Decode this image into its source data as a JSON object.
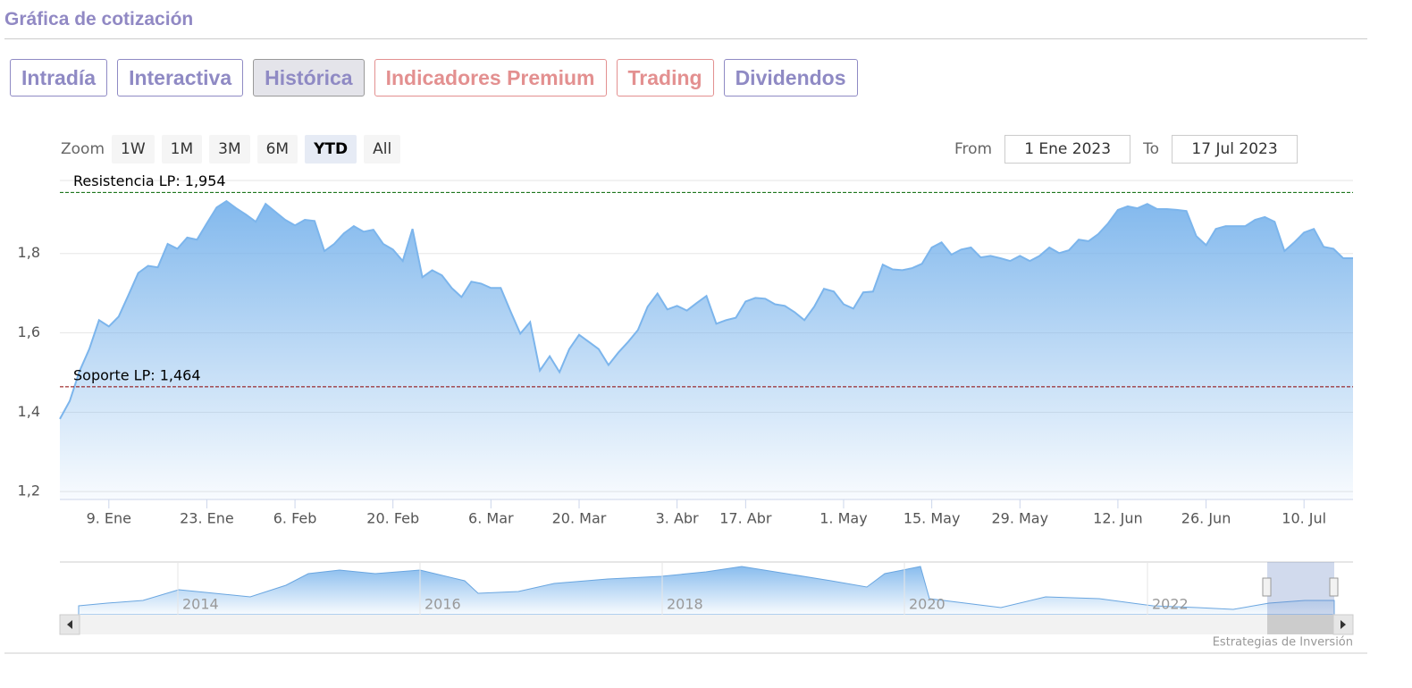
{
  "header": {
    "title": "Gráfica de cotización"
  },
  "tabs": [
    "Intradía",
    "Interactiva",
    "Histórica",
    "Indicadores Premium",
    "Trading",
    "Dividendos"
  ],
  "zoom": {
    "label": "Zoom",
    "buttons": [
      "1W",
      "1M",
      "3M",
      "6M",
      "YTD",
      "All"
    ]
  },
  "range": {
    "from_label": "From",
    "from": "1 Ene 2023",
    "to_label": "To",
    "to": "17 Jul 2023"
  },
  "navigator": {
    "labels": [
      "2014",
      "2016",
      "2018",
      "2020",
      "2022"
    ]
  },
  "credits": "Estrategias de Inversión",
  "chart_data": {
    "type": "area",
    "color": "#7cb5ec",
    "grid": true,
    "ylim": [
      1.18,
      1.984
    ],
    "yticks": [
      {
        "value": 1.2,
        "label": "1,2"
      },
      {
        "value": 1.4,
        "label": "1,4"
      },
      {
        "value": 1.6,
        "label": "1,6"
      },
      {
        "value": 1.8,
        "label": "1,8"
      }
    ],
    "lines": [
      {
        "label": "Resistencia LP: 1,954",
        "value": 1.954,
        "color": "#006400"
      },
      {
        "label": "Soporte LP: 1,464",
        "value": 1.464,
        "color": "#8b0000"
      }
    ],
    "categories": [
      null,
      null,
      null,
      null,
      null,
      "9. Ene",
      null,
      null,
      null,
      null,
      null,
      null,
      null,
      null,
      null,
      "23. Ene",
      null,
      null,
      null,
      null,
      null,
      null,
      null,
      null,
      "6. Feb",
      null,
      null,
      null,
      null,
      null,
      null,
      null,
      null,
      null,
      "20. Feb",
      null,
      null,
      null,
      null,
      null,
      null,
      null,
      null,
      null,
      "6. Mar",
      null,
      null,
      null,
      null,
      null,
      null,
      null,
      null,
      "20. Mar",
      null,
      null,
      null,
      null,
      null,
      null,
      null,
      null,
      null,
      "3. Abr",
      null,
      null,
      null,
      null,
      null,
      null,
      "17. Abr",
      null,
      null,
      null,
      null,
      null,
      null,
      null,
      null,
      null,
      "1. May",
      null,
      null,
      null,
      null,
      null,
      null,
      null,
      null,
      "15. May",
      null,
      null,
      null,
      null,
      null,
      null,
      null,
      null,
      "29. May",
      null,
      null,
      null,
      null,
      null,
      null,
      null,
      null,
      null,
      "12. Jun",
      null,
      null,
      null,
      null,
      null,
      null,
      null,
      null,
      "26. Jun",
      null,
      null,
      null,
      null,
      null,
      null,
      null,
      null,
      null,
      "10. Jul",
      null,
      null,
      null,
      null,
      null
    ],
    "values": [
      1.383,
      1.428,
      1.503,
      1.559,
      1.632,
      1.616,
      1.641,
      1.695,
      1.751,
      1.769,
      1.765,
      1.824,
      1.812,
      1.84,
      1.835,
      1.876,
      1.916,
      1.932,
      1.914,
      1.898,
      1.88,
      1.925,
      1.905,
      1.885,
      1.871,
      1.885,
      1.882,
      1.806,
      1.824,
      1.851,
      1.869,
      1.855,
      1.86,
      1.824,
      1.81,
      1.781,
      1.862,
      1.74,
      1.758,
      1.745,
      1.713,
      1.69,
      1.729,
      1.724,
      1.713,
      1.713,
      1.654,
      1.598,
      1.627,
      1.505,
      1.541,
      1.501,
      1.559,
      1.595,
      1.577,
      1.559,
      1.519,
      1.55,
      1.577,
      1.607,
      1.666,
      1.699,
      1.659,
      1.668,
      1.656,
      1.675,
      1.693,
      1.623,
      1.632,
      1.638,
      1.679,
      1.688,
      1.686,
      1.672,
      1.668,
      1.652,
      1.632,
      1.666,
      1.711,
      1.704,
      1.672,
      1.661,
      1.702,
      1.704,
      1.772,
      1.76,
      1.758,
      1.763,
      1.774,
      1.815,
      1.828,
      1.797,
      1.81,
      1.815,
      1.79,
      1.794,
      1.788,
      1.781,
      1.794,
      1.781,
      1.794,
      1.815,
      1.801,
      1.808,
      1.835,
      1.831,
      1.849,
      1.876,
      1.91,
      1.919,
      1.914,
      1.925,
      1.912,
      1.912,
      1.91,
      1.907,
      1.844,
      1.821,
      1.862,
      1.869,
      1.869,
      1.869,
      1.885,
      1.892,
      1.88,
      1.806,
      1.828,
      1.853,
      1.862,
      1.817,
      1.812,
      1.788,
      1.788
    ]
  }
}
